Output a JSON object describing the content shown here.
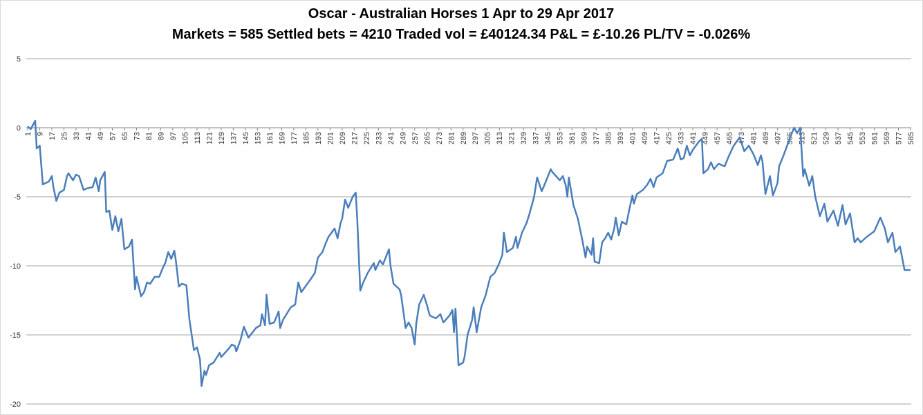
{
  "chart_data": {
    "type": "line",
    "title": "Oscar - Australian Horses 1 Apr to 29 Apr 2017",
    "subtitle": "Markets = 585  Settled bets = 4210  Traded vol = £40124.34  P&L = £-10.26  PL/TV = -0.026%",
    "xlim": [
      1,
      585
    ],
    "xticks": [
      1,
      9,
      17,
      25,
      33,
      41,
      49,
      57,
      65,
      73,
      81,
      89,
      97,
      105,
      113,
      121,
      129,
      137,
      145,
      153,
      161,
      169,
      177,
      185,
      193,
      201,
      209,
      217,
      225,
      233,
      241,
      249,
      257,
      265,
      273,
      281,
      289,
      297,
      305,
      313,
      321,
      329,
      337,
      345,
      353,
      361,
      369,
      377,
      385,
      393,
      401,
      409,
      417,
      425,
      433,
      441,
      449,
      457,
      465,
      473,
      481,
      489,
      497,
      505,
      513,
      521,
      529,
      537,
      545,
      553,
      561,
      569,
      577,
      585
    ],
    "ylim": [
      -20,
      5
    ],
    "yticks": [
      -20,
      -15,
      -10,
      -5,
      0,
      5
    ],
    "grid": true,
    "series": [
      {
        "color": "#4a7ebb",
        "x": [
          1,
          3,
          6,
          7,
          9,
          11,
          15,
          17,
          18,
          20,
          22,
          25,
          27,
          28,
          31,
          33,
          35,
          38,
          40,
          44,
          46,
          48,
          49,
          52,
          53,
          55,
          57,
          59,
          61,
          63,
          65,
          68,
          70,
          72,
          73,
          76,
          78,
          80,
          82,
          85,
          88,
          91,
          92,
          94,
          96,
          98,
          99,
          101,
          103,
          106,
          108,
          111,
          113,
          115,
          116,
          118,
          119,
          121,
          124,
          128,
          129,
          134,
          136,
          138,
          139,
          142,
          144,
          147,
          152,
          155,
          156,
          158,
          159,
          161,
          164,
          167,
          168,
          170,
          175,
          178,
          180,
          182,
          186,
          188,
          191,
          193,
          196,
          198,
          200,
          204,
          206,
          208,
          209,
          211,
          213,
          216,
          218,
          219,
          221,
          223,
          226,
          230,
          231,
          234,
          236,
          240,
          241,
          243,
          247,
          248,
          251,
          253,
          255,
          257,
          258,
          260,
          263,
          265,
          267,
          271,
          274,
          276,
          280,
          282,
          283,
          284,
          286,
          289,
          290,
          292,
          295,
          296,
          298,
          301,
          304,
          307,
          310,
          313,
          315,
          316,
          318,
          322,
          324,
          325,
          328,
          331,
          333,
          336,
          338,
          341,
          343,
          347,
          348,
          353,
          355,
          357,
          358,
          359,
          362,
          365,
          368,
          370,
          371,
          374,
          375,
          376,
          379,
          381,
          383,
          385,
          387,
          389,
          390,
          392,
          394,
          397,
          399,
          401,
          402,
          404,
          408,
          411,
          413,
          415,
          417,
          421,
          424,
          428,
          431,
          433,
          435,
          437,
          439,
          441,
          445,
          447,
          448,
          451,
          453,
          455,
          458,
          462,
          465,
          468,
          472,
          475,
          478,
          481,
          484,
          486,
          487,
          489,
          492,
          494,
          497,
          498,
          501,
          504,
          506,
          508,
          510,
          512,
          514,
          515,
          518,
          520,
          522,
          525,
          528,
          530,
          534,
          537,
          540,
          542,
          545,
          548,
          550,
          552,
          556,
          561,
          565,
          568,
          570,
          573,
          575,
          578,
          581,
          585
        ],
        "values": [
          0.1,
          -0.1,
          0.5,
          -1.5,
          -1.3,
          -4.1,
          -3.9,
          -3.5,
          -4.3,
          -5.3,
          -4.7,
          -4.5,
          -3.5,
          -3.3,
          -3.8,
          -3.4,
          -3.5,
          -4.5,
          -4.4,
          -4.3,
          -3.6,
          -4.6,
          -3.8,
          -3.2,
          -6.1,
          -6.0,
          -7.4,
          -6.4,
          -7.5,
          -6.6,
          -8.8,
          -8.6,
          -8.1,
          -11.7,
          -10.8,
          -12.2,
          -11.9,
          -11.2,
          -11.3,
          -10.8,
          -10.8,
          -10.0,
          -9.8,
          -9.0,
          -9.5,
          -8.9,
          -9.6,
          -11.5,
          -11.3,
          -11.4,
          -13.9,
          -16.1,
          -15.9,
          -16.8,
          -18.7,
          -17.6,
          -17.9,
          -17.2,
          -17.0,
          -16.3,
          -16.6,
          -16.0,
          -15.7,
          -15.8,
          -16.2,
          -15.3,
          -14.4,
          -15.2,
          -14.5,
          -14.3,
          -13.5,
          -14.3,
          -12.1,
          -14.2,
          -14.1,
          -13.3,
          -14.5,
          -13.9,
          -13.0,
          -12.8,
          -11.2,
          -11.9,
          -11.3,
          -11.0,
          -10.5,
          -9.4,
          -9.0,
          -8.4,
          -7.9,
          -7.3,
          -8.0,
          -6.9,
          -6.6,
          -5.2,
          -5.8,
          -5.0,
          -4.7,
          -6.6,
          -11.8,
          -11.2,
          -10.5,
          -9.8,
          -10.3,
          -9.6,
          -9.9,
          -8.8,
          -10.0,
          -11.3,
          -11.7,
          -12.1,
          -14.5,
          -14.1,
          -14.5,
          -15.7,
          -14.2,
          -12.8,
          -12.1,
          -12.8,
          -13.6,
          -13.8,
          -13.5,
          -14.1,
          -13.6,
          -13.2,
          -14.8,
          -13.1,
          -17.2,
          -17.0,
          -16.6,
          -15.0,
          -13.9,
          -13.0,
          -14.8,
          -13.0,
          -12.1,
          -10.8,
          -10.5,
          -9.8,
          -9.2,
          -7.6,
          -9.0,
          -8.7,
          -7.9,
          -8.7,
          -7.6,
          -6.9,
          -6.2,
          -5.0,
          -3.6,
          -4.6,
          -4.1,
          -3.0,
          -3.2,
          -3.8,
          -3.5,
          -4.2,
          -5.0,
          -3.6,
          -5.6,
          -6.6,
          -8.2,
          -9.4,
          -8.6,
          -9.2,
          -8.0,
          -9.7,
          -9.8,
          -8.3,
          -8.0,
          -7.6,
          -8.1,
          -7.3,
          -6.5,
          -7.8,
          -6.8,
          -7.0,
          -5.9,
          -4.9,
          -5.5,
          -4.8,
          -4.5,
          -4.1,
          -3.7,
          -4.3,
          -3.6,
          -3.3,
          -2.4,
          -2.3,
          -1.5,
          -2.3,
          -2.2,
          -1.3,
          -2.0,
          -1.6,
          -1.0,
          -0.8,
          -3.3,
          -3.0,
          -2.5,
          -3.0,
          -2.6,
          -2.8,
          -2.0,
          -1.3,
          -0.7,
          -1.7,
          -1.3,
          -1.9,
          -2.7,
          -2.0,
          -2.4,
          -4.8,
          -3.5,
          -4.9,
          -4.0,
          -2.8,
          -2.0,
          -1.1,
          -0.5,
          0,
          -0.4,
          0,
          -3.5,
          -3.0,
          -4.2,
          -3.5,
          -5.0,
          -6.4,
          -5.5,
          -6.8,
          -6.0,
          -7.1,
          -5.6,
          -7.0,
          -6.2,
          -8.3,
          -8.0,
          -8.3,
          -7.9,
          -7.5,
          -6.5,
          -7.3,
          -8.3,
          -7.6,
          -9.0,
          -8.6,
          -10.3,
          -10.3
        ]
      }
    ]
  }
}
